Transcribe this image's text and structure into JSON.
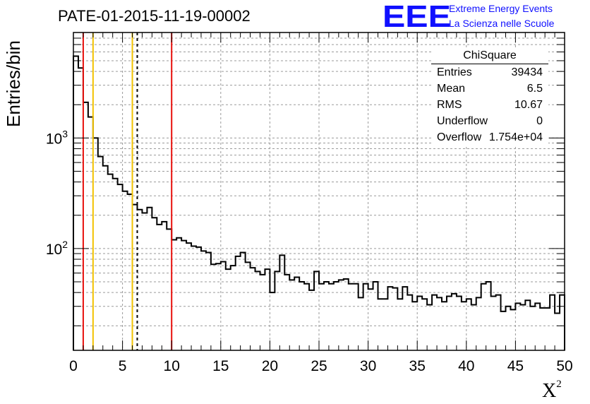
{
  "header": {
    "run_title": "PATE-01-2015-11-19-00002",
    "logo_text": "EEE",
    "tagline_1": "Extreme Energy Events",
    "tagline_2": "La Scienza nelle Scuole"
  },
  "stats": {
    "name": "ChiSquare",
    "rows": [
      {
        "key": "Entries",
        "value": "39434"
      },
      {
        "key": "Mean",
        "value": "6.5"
      },
      {
        "key": "RMS",
        "value": "10.67"
      },
      {
        "key": "Underflow",
        "value": "0"
      },
      {
        "key": "Overflow",
        "value": "1.754e+04"
      }
    ]
  },
  "chart_data": {
    "type": "bar",
    "style": "step-histogram",
    "title": "PATE-01-2015-11-19-00002",
    "xlabel": "X²",
    "ylabel": "Entries/bin",
    "xlim": [
      0,
      50
    ],
    "ylim": [
      12,
      9000
    ],
    "yscale": "log",
    "bin_width": 0.5,
    "x_ticks": [
      "0",
      "5",
      "10",
      "15",
      "20",
      "25",
      "30",
      "35",
      "40",
      "45",
      "50"
    ],
    "y_ticks": [
      {
        "label": "10",
        "exp": "3",
        "value": 1000
      },
      {
        "label": "10",
        "exp": "2",
        "value": 100
      }
    ],
    "grid": true,
    "values": [
      5500,
      4300,
      2100,
      1550,
      1000,
      680,
      560,
      470,
      430,
      380,
      330,
      310,
      250,
      225,
      210,
      235,
      190,
      165,
      175,
      150,
      120,
      125,
      118,
      112,
      105,
      103,
      95,
      92,
      72,
      73,
      76,
      65,
      70,
      85,
      92,
      75,
      67,
      62,
      58,
      65,
      40,
      62,
      87,
      58,
      52,
      55,
      50,
      48,
      42,
      62,
      48,
      50,
      48,
      50,
      52,
      53,
      48,
      48,
      36,
      48,
      43,
      50,
      35,
      35,
      45,
      44,
      35,
      45,
      38,
      33,
      37,
      35,
      31,
      38,
      36,
      33,
      37,
      39,
      37,
      33,
      35,
      31,
      36,
      48,
      50,
      37,
      38,
      27,
      30,
      28,
      32,
      31,
      34,
      30,
      32,
      29,
      29,
      38,
      26,
      38
    ],
    "vertical_lines": [
      {
        "x": 1,
        "color": "#e8100c",
        "style": "solid"
      },
      {
        "x": 2,
        "color": "#f2c200",
        "style": "solid"
      },
      {
        "x": 6,
        "color": "#f2c200",
        "style": "solid"
      },
      {
        "x": 6.5,
        "color": "#000000",
        "style": "dashed"
      },
      {
        "x": 10,
        "color": "#e8100c",
        "style": "solid"
      }
    ]
  }
}
